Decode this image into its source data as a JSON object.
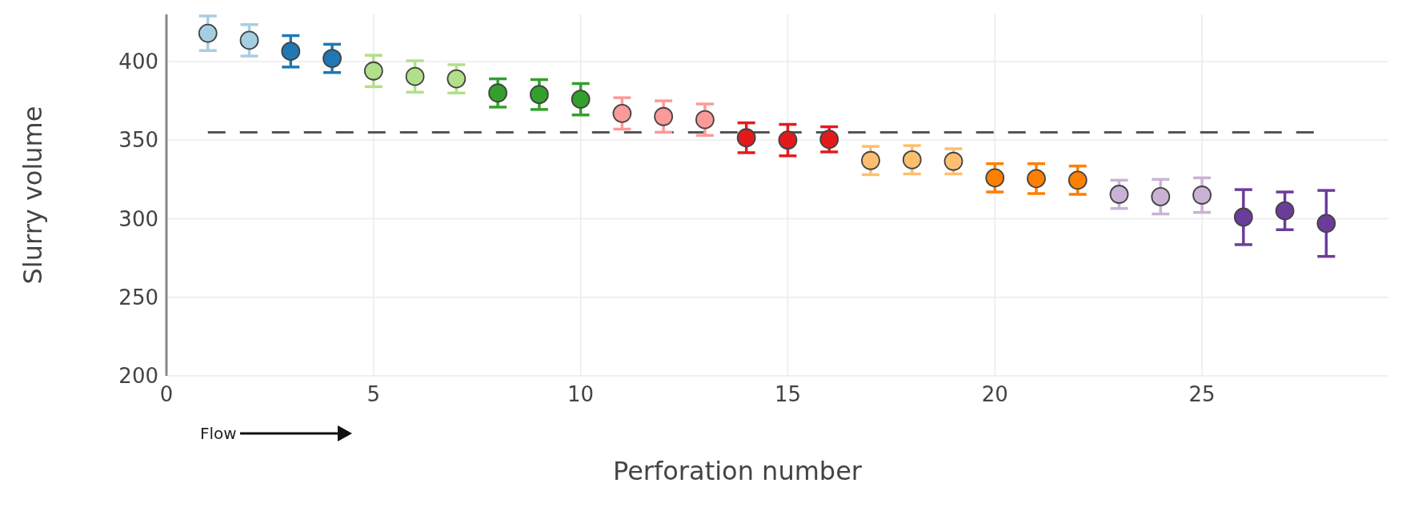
{
  "chart_data": {
    "type": "scatter",
    "xlabel": "Perforation number",
    "ylabel": "Slurry volume",
    "x": [
      1,
      2,
      3,
      4,
      5,
      6,
      7,
      8,
      9,
      10,
      11,
      12,
      13,
      14,
      15,
      16,
      17,
      18,
      19,
      20,
      21,
      22,
      23,
      24,
      25,
      26,
      27,
      28
    ],
    "values": [
      418,
      413.5,
      406.5,
      402,
      394,
      390.5,
      389,
      380,
      379,
      376,
      367,
      365,
      363,
      351.5,
      350,
      350.5,
      337,
      337.5,
      336.5,
      326,
      325.5,
      324.5,
      315.5,
      314,
      315,
      301,
      305,
      297
    ],
    "errors": [
      11,
      10,
      10,
      9,
      10,
      10,
      9,
      9,
      9.5,
      10,
      10,
      10,
      10,
      9.5,
      10,
      8,
      9,
      9,
      8,
      9,
      9.5,
      9,
      9,
      11,
      11,
      17.5,
      12,
      21
    ],
    "colors": [
      "#a6cee3",
      "#a6cee3",
      "#1f78b4",
      "#1f78b4",
      "#b2df8a",
      "#b2df8a",
      "#b2df8a",
      "#33a02c",
      "#33a02c",
      "#33a02c",
      "#fb9a99",
      "#fb9a99",
      "#fb9a99",
      "#e31a1c",
      "#e31a1c",
      "#e31a1c",
      "#fdbf6f",
      "#fdbf6f",
      "#fdbf6f",
      "#ff7f00",
      "#ff7f00",
      "#ff7f00",
      "#cab2d6",
      "#cab2d6",
      "#cab2d6",
      "#6a3d9a",
      "#6a3d9a",
      "#6a3d9a"
    ],
    "marker": "circle",
    "xlim": [
      0,
      29.5
    ],
    "xticks": [
      0,
      5,
      10,
      15,
      20,
      25
    ],
    "ylim": [
      200,
      430
    ],
    "yticks": [
      200,
      250,
      300,
      350,
      400
    ],
    "grid": true,
    "ref_lines": [
      {
        "axis": "y",
        "value": 355,
        "color": "#555555",
        "line_style": "dashed"
      }
    ],
    "annotations": [
      "Flow"
    ]
  }
}
